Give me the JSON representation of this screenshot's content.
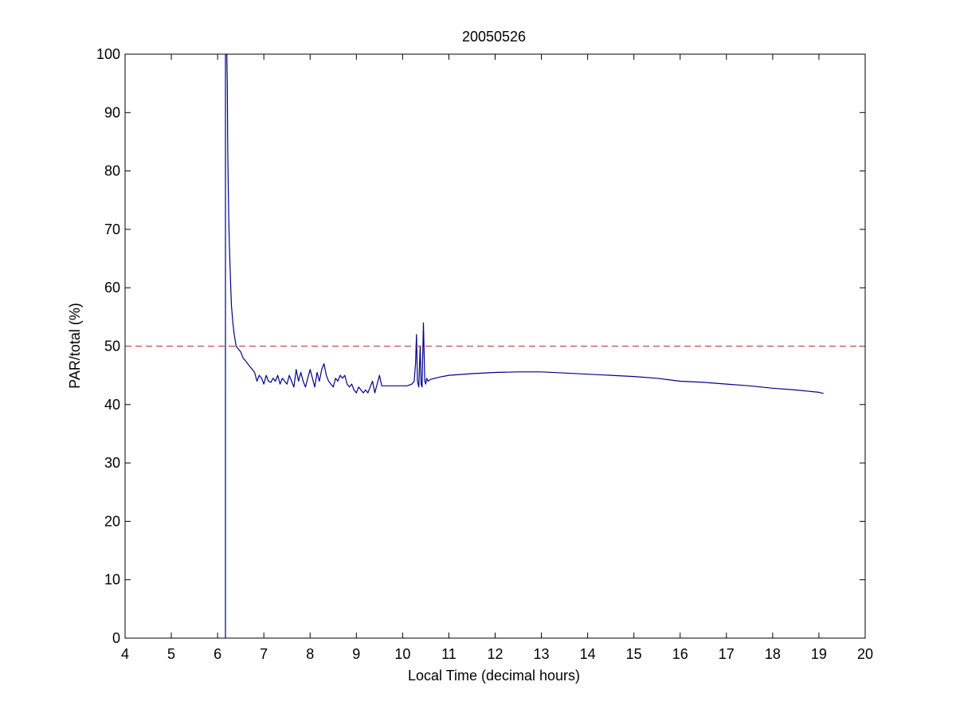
{
  "chart_data": {
    "type": "line",
    "title": "20050526",
    "xlabel": "Local Time (decimal hours)",
    "ylabel": "PAR/total (%)",
    "xlim": [
      4,
      20
    ],
    "ylim": [
      0,
      100
    ],
    "xticks": [
      "4",
      "5",
      "6",
      "7",
      "8",
      "9",
      "10",
      "11",
      "12",
      "13",
      "14",
      "15",
      "16",
      "17",
      "18",
      "19",
      "20"
    ],
    "yticks": [
      "0",
      "10",
      "20",
      "30",
      "40",
      "50",
      "60",
      "70",
      "80",
      "90",
      "100"
    ],
    "grid": false,
    "legend": "none",
    "series": [
      {
        "color": "#00008B",
        "style": "solid",
        "x": [
          6.17,
          6.17,
          6.2,
          6.21,
          6.22,
          6.24,
          6.26,
          6.28,
          6.3,
          6.33,
          6.36,
          6.4,
          6.45,
          6.5,
          6.55,
          6.6,
          6.65,
          6.7,
          6.75,
          6.8,
          6.85,
          6.9,
          6.95,
          7.0,
          7.05,
          7.1,
          7.15,
          7.2,
          7.25,
          7.3,
          7.35,
          7.4,
          7.45,
          7.5,
          7.55,
          7.6,
          7.65,
          7.7,
          7.75,
          7.8,
          7.85,
          7.9,
          7.95,
          8.0,
          8.05,
          8.1,
          8.15,
          8.2,
          8.25,
          8.3,
          8.35,
          8.4,
          8.45,
          8.5,
          8.55,
          8.6,
          8.65,
          8.7,
          8.75,
          8.8,
          8.85,
          8.9,
          8.95,
          9.0,
          9.05,
          9.1,
          9.15,
          9.2,
          9.25,
          9.3,
          9.35,
          9.4,
          9.45,
          9.5,
          9.55,
          9.6,
          9.7,
          9.8,
          9.9,
          10.0,
          10.1,
          10.2,
          10.25,
          10.28,
          10.3,
          10.32,
          10.35,
          10.38,
          10.4,
          10.42,
          10.45,
          10.48,
          10.5,
          10.52,
          10.55,
          10.6,
          10.7,
          10.8,
          11.0,
          11.5,
          12.0,
          12.5,
          13.0,
          13.5,
          14.0,
          14.5,
          15.0,
          15.5,
          16.0,
          16.5,
          17.0,
          17.5,
          18.0,
          18.5,
          19.0,
          19.1
        ],
        "y": [
          0,
          100,
          100,
          95,
          83,
          72,
          66,
          61,
          57,
          54,
          52,
          50,
          49.5,
          49,
          48,
          47.5,
          47,
          46.5,
          46,
          45.5,
          44,
          45,
          44.5,
          43.5,
          45,
          44,
          43.8,
          44.5,
          44,
          45,
          43.5,
          44.5,
          44,
          43.5,
          45,
          44,
          43,
          46,
          44,
          45.5,
          44,
          43,
          44.5,
          46,
          44.5,
          43,
          45.5,
          44,
          46,
          47,
          45,
          44,
          43.5,
          43,
          44.5,
          44,
          45,
          44.5,
          45,
          43.5,
          43,
          43.5,
          42.5,
          42,
          43,
          42.5,
          42,
          42.5,
          42,
          43,
          44,
          42,
          43.5,
          45,
          43.2,
          43.2,
          43.2,
          43.2,
          43.2,
          43.2,
          43.2,
          43.5,
          44,
          47,
          52,
          44,
          43,
          50,
          43.5,
          43,
          54,
          44,
          43.5,
          44.5,
          44,
          44.3,
          44.5,
          44.7,
          45,
          45.3,
          45.5,
          45.6,
          45.6,
          45.4,
          45.2,
          45,
          44.8,
          44.5,
          44,
          43.8,
          43.5,
          43.2,
          42.8,
          42.5,
          42.1,
          41.9
        ]
      },
      {
        "color": "#C0504D",
        "style": "dashed",
        "x": [
          4,
          20
        ],
        "y": [
          50,
          50
        ]
      }
    ]
  }
}
